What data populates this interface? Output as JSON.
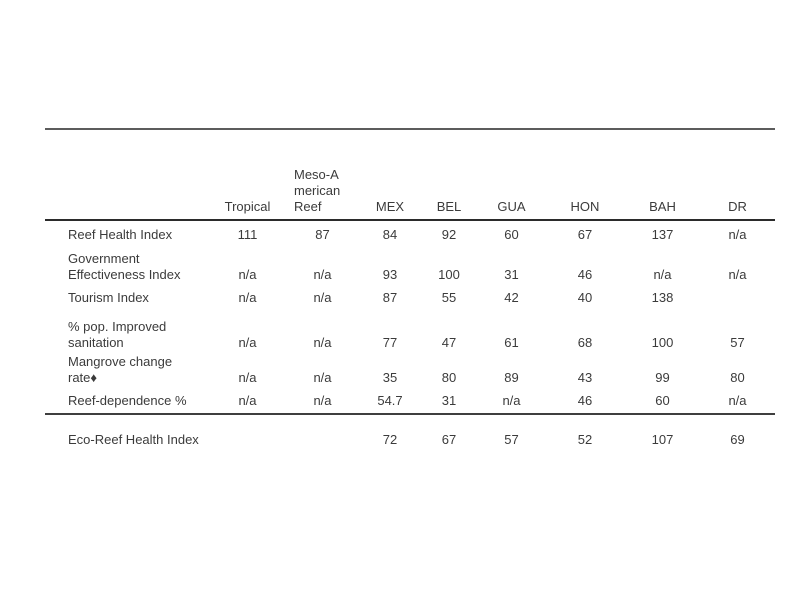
{
  "page": {
    "background_color": "#ffffff",
    "text_color": "#3b3b3b",
    "rule_colors": {
      "top_rule": "#5c5c5c",
      "header_rule": "#2b2b2b",
      "section_rule": "#3f3f3f"
    }
  },
  "table": {
    "columns": [
      {
        "label": ""
      },
      {
        "label": "Tropical"
      },
      {
        "label": "Meso-American Reef"
      },
      {
        "label": "MEX"
      },
      {
        "label": "BEL"
      },
      {
        "label": "GUA"
      },
      {
        "label": "HON"
      },
      {
        "label": "BAH"
      },
      {
        "label": "DR"
      }
    ],
    "rows": [
      {
        "label": "Reef Health Index",
        "values": [
          "111",
          "87",
          "84",
          "92",
          "60",
          "67",
          "137",
          "n/a"
        ]
      },
      {
        "label": "Government Effectiveness Index",
        "values": [
          "n/a",
          "n/a",
          "93",
          "100",
          "31",
          "46",
          "n/a",
          "n/a"
        ]
      },
      {
        "label": "Tourism Index",
        "values": [
          "n/a",
          "n/a",
          "87",
          "55",
          "42",
          "40",
          "138",
          ""
        ]
      },
      {
        "label": "% pop. Improved sanitation",
        "values": [
          "n/a",
          "n/a",
          "77",
          "47",
          "61",
          "68",
          "100",
          "57"
        ]
      },
      {
        "label": "Mangrove change rate♦",
        "values": [
          "n/a",
          "n/a",
          "35",
          "80",
          "89",
          "43",
          "99",
          "80"
        ]
      },
      {
        "label": "Reef-dependence %",
        "values": [
          "n/a",
          "n/a",
          "54.7",
          "31",
          "n/a",
          "46",
          "60",
          "n/a"
        ]
      },
      {
        "label": "Eco-Reef Health Index",
        "values": [
          "",
          "",
          "72",
          "67",
          "57",
          "52",
          "107",
          "69"
        ]
      }
    ]
  }
}
